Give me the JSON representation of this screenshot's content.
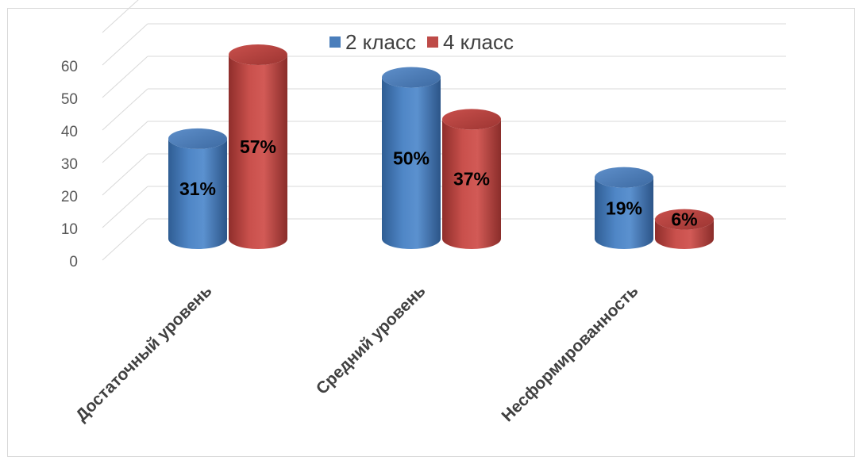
{
  "chart_data": {
    "type": "bar",
    "title": "",
    "xlabel": "",
    "ylabel": "",
    "ylim": [
      0,
      60
    ],
    "yticks": [
      0,
      10,
      20,
      30,
      40,
      50,
      60
    ],
    "grid": true,
    "legend_position": "top",
    "categories": [
      "Достаточный уровень",
      "Средний уровень",
      "Несформированность"
    ],
    "series": [
      {
        "name": "2 класс",
        "color": "#4a7ebb",
        "values": [
          31,
          50,
          19
        ],
        "labels": [
          "31%",
          "50%",
          "19%"
        ]
      },
      {
        "name": "4 класс",
        "color": "#be4b48",
        "values": [
          57,
          37,
          6
        ],
        "labels": [
          "57%",
          "37%",
          "6%"
        ]
      }
    ]
  }
}
